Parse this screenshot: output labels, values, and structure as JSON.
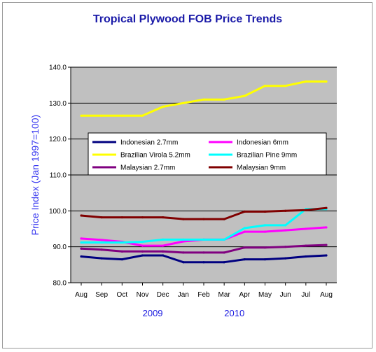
{
  "chart_data": {
    "type": "line",
    "title": "Tropical Plywood FOB Price Trends",
    "ylabel": "Price Index (Jan 1997=100)",
    "xlabel": "",
    "categories": [
      "Aug",
      "Sep",
      "Oct",
      "Nov",
      "Dec",
      "Jan",
      "Feb",
      "Mar",
      "Apr",
      "May",
      "Jun",
      "Jul",
      "Aug"
    ],
    "year_labels": [
      {
        "label": "2009",
        "at_category": 3.5
      },
      {
        "label": "2010",
        "at_category": 7.5
      }
    ],
    "ylim": [
      80,
      140
    ],
    "yticks": [
      "80.0",
      "90.0",
      "100.0",
      "110.0",
      "120.0",
      "130.0",
      "140.0"
    ],
    "grid": true,
    "legend": "inside-center",
    "plot_background": "#c0c0c0",
    "series": [
      {
        "name": "Indonesian 2.7mm",
        "color": "#000080",
        "values": [
          87.3,
          86.8,
          86.5,
          87.6,
          87.6,
          85.7,
          85.7,
          85.7,
          86.5,
          86.5,
          86.8,
          87.3,
          87.6
        ]
      },
      {
        "name": "Indonesian 6mm",
        "color": "#ff00ff",
        "values": [
          92.3,
          91.9,
          91.4,
          90.3,
          90.3,
          91.5,
          92.0,
          92.0,
          94.2,
          94.2,
          94.6,
          95.0,
          95.4
        ]
      },
      {
        "name": "Brazilian Virola 5.2mm",
        "color": "#ffff00",
        "values": [
          126.5,
          126.5,
          126.5,
          126.5,
          129.0,
          130.0,
          131.0,
          131.0,
          132.0,
          134.8,
          134.8,
          136.0,
          136.0
        ]
      },
      {
        "name": "Brazilian Pine 9mm",
        "color": "#00ffff",
        "values": [
          91.2,
          91.2,
          91.2,
          91.4,
          92.0,
          92.0,
          92.0,
          92.0,
          95.2,
          96.0,
          96.0,
          100.5,
          100.5
        ]
      },
      {
        "name": "Malaysian 2.7mm",
        "color": "#800080",
        "values": [
          89.5,
          89.2,
          88.7,
          88.7,
          88.7,
          88.4,
          88.4,
          88.4,
          89.8,
          89.8,
          90.0,
          90.3,
          90.5
        ]
      },
      {
        "name": "Malaysian 9mm",
        "color": "#800000",
        "values": [
          98.7,
          98.2,
          98.2,
          98.2,
          98.2,
          97.7,
          97.7,
          97.7,
          99.8,
          99.8,
          100.0,
          100.2,
          100.8
        ]
      }
    ]
  }
}
